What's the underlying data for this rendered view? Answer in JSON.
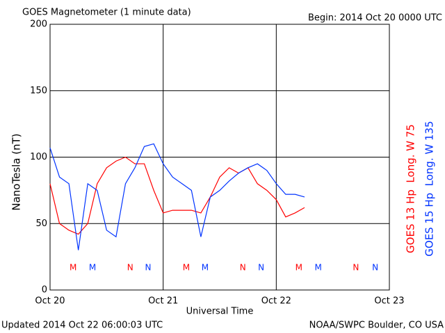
{
  "chart_data": {
    "type": "line",
    "title": "GOES Magnetometer (1 minute data)",
    "subtitle": "Begin:  2014 Oct 20 0000 UTC",
    "ylabel": "NanoTesla (nT)",
    "xlabel": "Universal Time",
    "footer_left": "Updated 2014 Oct 22 06:00:03 UTC",
    "footer_right": "NOAA/SWPC Boulder, CO USA",
    "xlim": [
      0,
      72
    ],
    "xticks": [
      {
        "value": 0,
        "label": "Oct 20"
      },
      {
        "value": 24,
        "label": "Oct 21"
      },
      {
        "value": 48,
        "label": "Oct 22"
      },
      {
        "value": 72,
        "label": "Oct 23"
      }
    ],
    "ylim": [
      0,
      200
    ],
    "yticks": [
      0,
      50,
      100,
      150,
      200
    ],
    "grid": true,
    "x": [
      0,
      2,
      4,
      6,
      8,
      10,
      12,
      14,
      16,
      18,
      20,
      22,
      24,
      26,
      28,
      30,
      32,
      34,
      36,
      38,
      40,
      42,
      44,
      46,
      48,
      50,
      52,
      54
    ],
    "series": [
      {
        "name": "GOES 13 Hp  Long. W 75",
        "color": "#ff0000",
        "values": [
          80,
          50,
          45,
          42,
          50,
          80,
          92,
          97,
          100,
          95,
          95,
          75,
          58,
          60,
          60,
          60,
          58,
          70,
          85,
          92,
          88,
          92,
          80,
          75,
          68,
          55,
          58,
          62
        ],
        "markers": [
          {
            "label": "M",
            "x": 4.9
          },
          {
            "label": "N",
            "x": 17
          },
          {
            "label": "M",
            "x": 28.9
          },
          {
            "label": "N",
            "x": 40.9
          },
          {
            "label": "M",
            "x": 52.8
          },
          {
            "label": "N",
            "x": 64.9
          }
        ]
      },
      {
        "name": "GOES 15 Hp  Long. W 135",
        "color": "#0033ff",
        "values": [
          107,
          85,
          80,
          30,
          80,
          75,
          45,
          40,
          80,
          92,
          108,
          110,
          95,
          85,
          80,
          75,
          40,
          70,
          75,
          82,
          88,
          92,
          95,
          90,
          80,
          72,
          72,
          70
        ],
        "markers": [
          {
            "label": "M",
            "x": 9
          },
          {
            "label": "N",
            "x": 20.8
          },
          {
            "label": "M",
            "x": 32.9
          },
          {
            "label": "N",
            "x": 44.8
          },
          {
            "label": "M",
            "x": 56.9
          },
          {
            "label": "N",
            "x": 69
          }
        ]
      }
    ]
  }
}
